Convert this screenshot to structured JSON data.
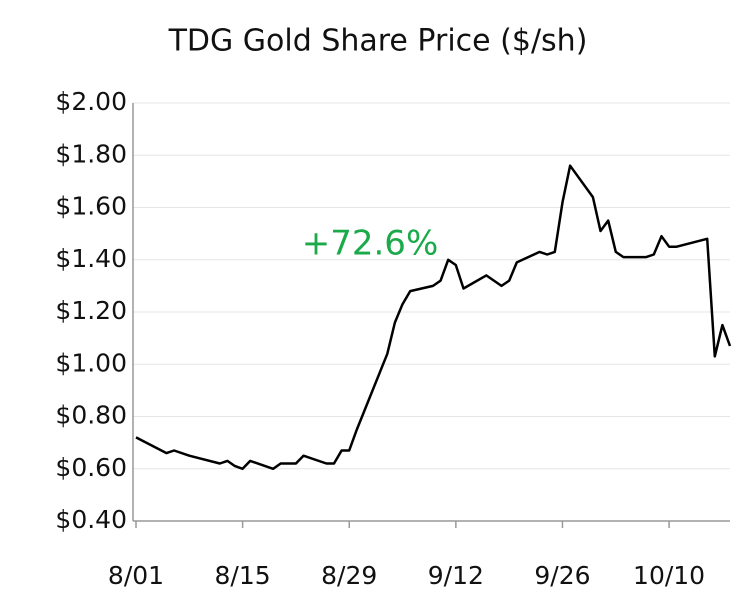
{
  "chart_data": {
    "type": "line",
    "title": "TDG Gold Share Price ($/sh)",
    "annotation": {
      "text": "+72.6%",
      "color": "#1aaa4a"
    },
    "x": [
      "8/01",
      "8/05",
      "8/06",
      "8/08",
      "8/12",
      "8/13",
      "8/14",
      "8/15",
      "8/16",
      "8/19",
      "8/20",
      "8/22",
      "8/23",
      "8/26",
      "8/27",
      "8/28",
      "8/29",
      "8/30",
      "9/03",
      "9/04",
      "9/05",
      "9/06",
      "9/09",
      "9/10",
      "9/11",
      "9/12",
      "9/13",
      "9/16",
      "9/18",
      "9/19",
      "9/20",
      "9/23",
      "9/24",
      "9/25",
      "9/26",
      "9/27",
      "9/30",
      "10/01",
      "10/02",
      "10/03",
      "10/04",
      "10/07",
      "10/08",
      "10/09",
      "10/10",
      "10/11",
      "10/15",
      "10/16",
      "10/17",
      "10/18"
    ],
    "series": [
      {
        "name": "TDG Gold",
        "color": "#000000",
        "values": [
          0.72,
          0.66,
          0.67,
          0.65,
          0.62,
          0.63,
          0.61,
          0.6,
          0.63,
          0.6,
          0.62,
          0.62,
          0.65,
          0.62,
          0.62,
          0.67,
          0.67,
          0.75,
          1.04,
          1.16,
          1.23,
          1.28,
          1.3,
          1.32,
          1.4,
          1.38,
          1.29,
          1.34,
          1.3,
          1.32,
          1.39,
          1.43,
          1.42,
          1.43,
          1.62,
          1.76,
          1.64,
          1.51,
          1.55,
          1.43,
          1.41,
          1.41,
          1.42,
          1.49,
          1.45,
          1.45,
          1.48,
          1.03,
          1.15,
          1.07
        ]
      }
    ],
    "xlim": [
      "8/01",
      "10/18"
    ],
    "xticks": [
      "8/01",
      "8/15",
      "8/29",
      "9/12",
      "9/26",
      "10/10"
    ],
    "ylim": [
      0.4,
      2.0
    ],
    "yticks": [
      {
        "value": 0.4,
        "label": "$0.40"
      },
      {
        "value": 0.6,
        "label": "$0.60"
      },
      {
        "value": 0.8,
        "label": "$0.80"
      },
      {
        "value": 1.0,
        "label": "$1.00"
      },
      {
        "value": 1.2,
        "label": "$1.20"
      },
      {
        "value": 1.4,
        "label": "$1.40"
      },
      {
        "value": 1.6,
        "label": "$1.60"
      },
      {
        "value": 1.8,
        "label": "$1.80"
      },
      {
        "value": 2.0,
        "label": "$2.00"
      }
    ],
    "grid": true
  }
}
